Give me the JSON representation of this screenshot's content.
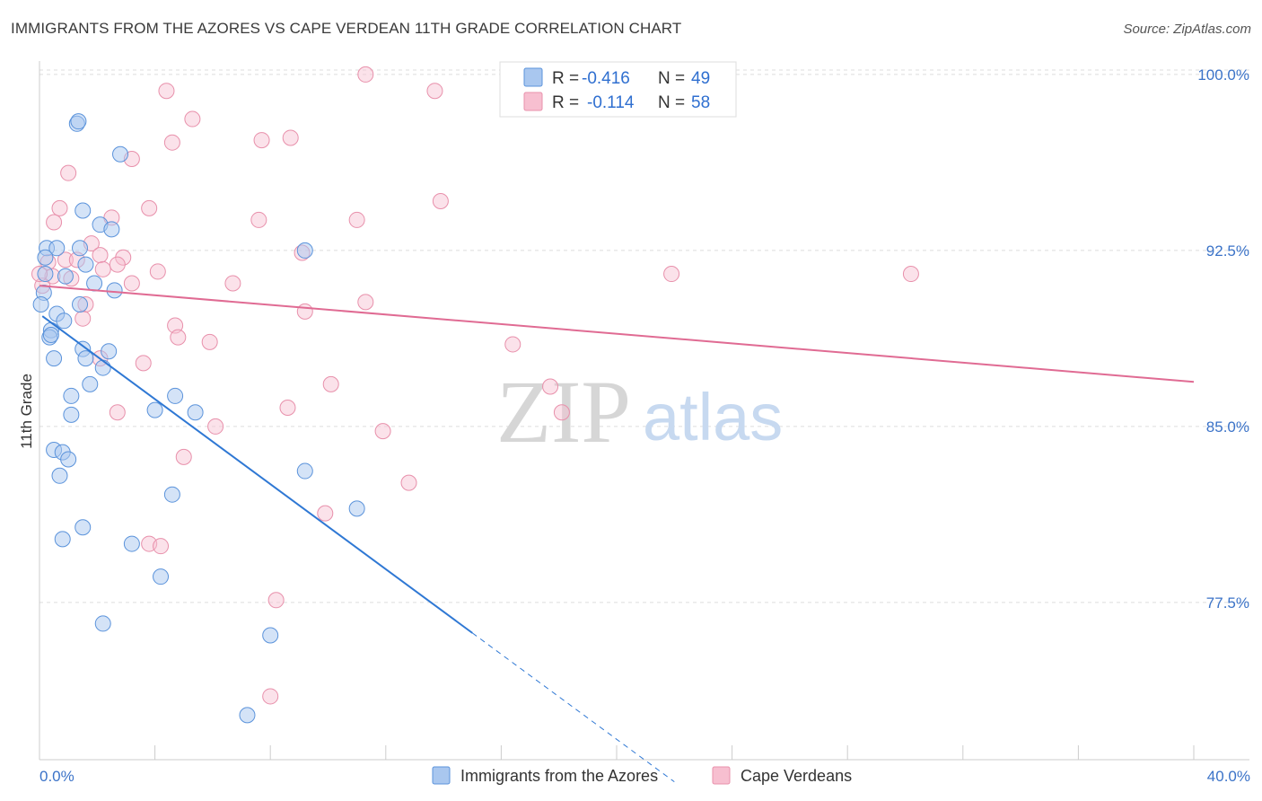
{
  "header": {
    "title": "IMMIGRANTS FROM THE AZORES VS CAPE VERDEAN 11TH GRADE CORRELATION CHART",
    "source": "Source: ZipAtlas.com"
  },
  "watermark": {
    "zip": "ZIP",
    "atlas": "atlas"
  },
  "colors": {
    "series_a_fill": "#a9c7ef",
    "series_a_stroke": "#5b93db",
    "series_a_line": "#2f78d4",
    "series_b_fill": "#f7bfd0",
    "series_b_stroke": "#e890ab",
    "series_b_line": "#e06b93",
    "tick_label": "#3b73c8",
    "grid": "#dedede"
  },
  "chart_data": {
    "type": "scatter",
    "title": "IMMIGRANTS FROM THE AZORES VS CAPE VERDEAN 11TH GRADE CORRELATION CHART",
    "xlabel": "",
    "ylabel": "11th Grade",
    "xlim": [
      0,
      40
    ],
    "ylim": [
      70.8,
      100.8
    ],
    "x_tick_labels": [
      "0.0%",
      "40.0%"
    ],
    "y_ticks": [
      77.5,
      85.0,
      92.5,
      100.0
    ],
    "y_tick_labels": [
      "77.5%",
      "85.0%",
      "92.5%",
      "100.0%"
    ],
    "legend_stats": [
      {
        "r_label": "R =",
        "r_value": "-0.416",
        "n_label": "N =",
        "n_value": "49"
      },
      {
        "r_label": "R =",
        "r_value": "-0.114",
        "n_label": "N =",
        "n_value": "58"
      }
    ],
    "series": [
      {
        "name": "Immigrants from the Azores",
        "trend": {
          "x0": 0.1,
          "y0": 89.7,
          "x1": 15.0,
          "y1": 76.2,
          "dash_x_end": 22.0
        },
        "points": [
          [
            1.3,
            97.9
          ],
          [
            1.35,
            98.0
          ],
          [
            2.8,
            96.6
          ],
          [
            1.5,
            94.2
          ],
          [
            2.1,
            93.6
          ],
          [
            2.5,
            93.4
          ],
          [
            0.25,
            92.6
          ],
          [
            0.6,
            92.6
          ],
          [
            1.4,
            92.6
          ],
          [
            0.2,
            92.2
          ],
          [
            1.6,
            91.9
          ],
          [
            9.2,
            92.5
          ],
          [
            0.9,
            91.4
          ],
          [
            1.9,
            91.1
          ],
          [
            2.6,
            90.8
          ],
          [
            0.15,
            90.7
          ],
          [
            1.4,
            90.2
          ],
          [
            0.05,
            90.2
          ],
          [
            0.6,
            89.8
          ],
          [
            0.85,
            89.5
          ],
          [
            0.4,
            89.1
          ],
          [
            0.35,
            88.8
          ],
          [
            1.5,
            88.3
          ],
          [
            2.4,
            88.2
          ],
          [
            1.6,
            87.9
          ],
          [
            0.5,
            87.9
          ],
          [
            2.2,
            87.5
          ],
          [
            1.75,
            86.8
          ],
          [
            1.1,
            86.3
          ],
          [
            4.7,
            86.3
          ],
          [
            1.1,
            85.5
          ],
          [
            4.0,
            85.7
          ],
          [
            5.4,
            85.6
          ],
          [
            0.5,
            84.0
          ],
          [
            0.8,
            83.9
          ],
          [
            1.0,
            83.6
          ],
          [
            9.2,
            83.1
          ],
          [
            0.7,
            82.9
          ],
          [
            4.6,
            82.1
          ],
          [
            11.0,
            81.5
          ],
          [
            1.5,
            80.7
          ],
          [
            0.8,
            80.2
          ],
          [
            3.2,
            80.0
          ],
          [
            4.2,
            78.6
          ],
          [
            2.2,
            76.6
          ],
          [
            8.0,
            76.1
          ],
          [
            7.2,
            72.7
          ],
          [
            0.2,
            91.5
          ],
          [
            0.4,
            88.9
          ]
        ]
      },
      {
        "name": "Cape Verdeans",
        "trend": {
          "x0": 0.0,
          "y0": 91.0,
          "x1": 40.0,
          "y1": 86.9
        },
        "points": [
          [
            11.3,
            100.0
          ],
          [
            4.4,
            99.3
          ],
          [
            13.7,
            99.3
          ],
          [
            5.3,
            98.1
          ],
          [
            8.7,
            97.3
          ],
          [
            7.7,
            97.2
          ],
          [
            4.6,
            97.1
          ],
          [
            3.2,
            96.4
          ],
          [
            1.0,
            95.8
          ],
          [
            13.9,
            94.6
          ],
          [
            0.7,
            94.3
          ],
          [
            3.8,
            94.3
          ],
          [
            2.5,
            93.9
          ],
          [
            0.5,
            93.7
          ],
          [
            7.6,
            93.8
          ],
          [
            11.0,
            93.8
          ],
          [
            1.8,
            92.8
          ],
          [
            2.9,
            92.2
          ],
          [
            2.1,
            92.3
          ],
          [
            0.3,
            92.0
          ],
          [
            0.9,
            92.1
          ],
          [
            1.3,
            92.1
          ],
          [
            2.7,
            91.9
          ],
          [
            2.2,
            91.7
          ],
          [
            4.1,
            91.6
          ],
          [
            9.1,
            92.4
          ],
          [
            21.9,
            91.5
          ],
          [
            30.2,
            91.5
          ],
          [
            0.45,
            91.4
          ],
          [
            1.1,
            91.3
          ],
          [
            3.2,
            91.1
          ],
          [
            6.7,
            91.1
          ],
          [
            0.1,
            91.0
          ],
          [
            1.6,
            90.2
          ],
          [
            11.3,
            90.3
          ],
          [
            9.2,
            89.9
          ],
          [
            1.5,
            89.6
          ],
          [
            4.7,
            89.3
          ],
          [
            4.8,
            88.8
          ],
          [
            5.9,
            88.6
          ],
          [
            16.4,
            88.5
          ],
          [
            3.6,
            87.7
          ],
          [
            2.1,
            87.9
          ],
          [
            10.1,
            86.8
          ],
          [
            17.7,
            86.7
          ],
          [
            8.6,
            85.8
          ],
          [
            2.7,
            85.6
          ],
          [
            18.1,
            85.6
          ],
          [
            6.1,
            85.0
          ],
          [
            11.9,
            84.8
          ],
          [
            5.0,
            83.7
          ],
          [
            12.8,
            82.6
          ],
          [
            9.9,
            81.3
          ],
          [
            3.8,
            80.0
          ],
          [
            4.2,
            79.9
          ],
          [
            8.2,
            77.6
          ],
          [
            8.0,
            73.5
          ],
          [
            0.0,
            91.5
          ]
        ]
      }
    ]
  }
}
